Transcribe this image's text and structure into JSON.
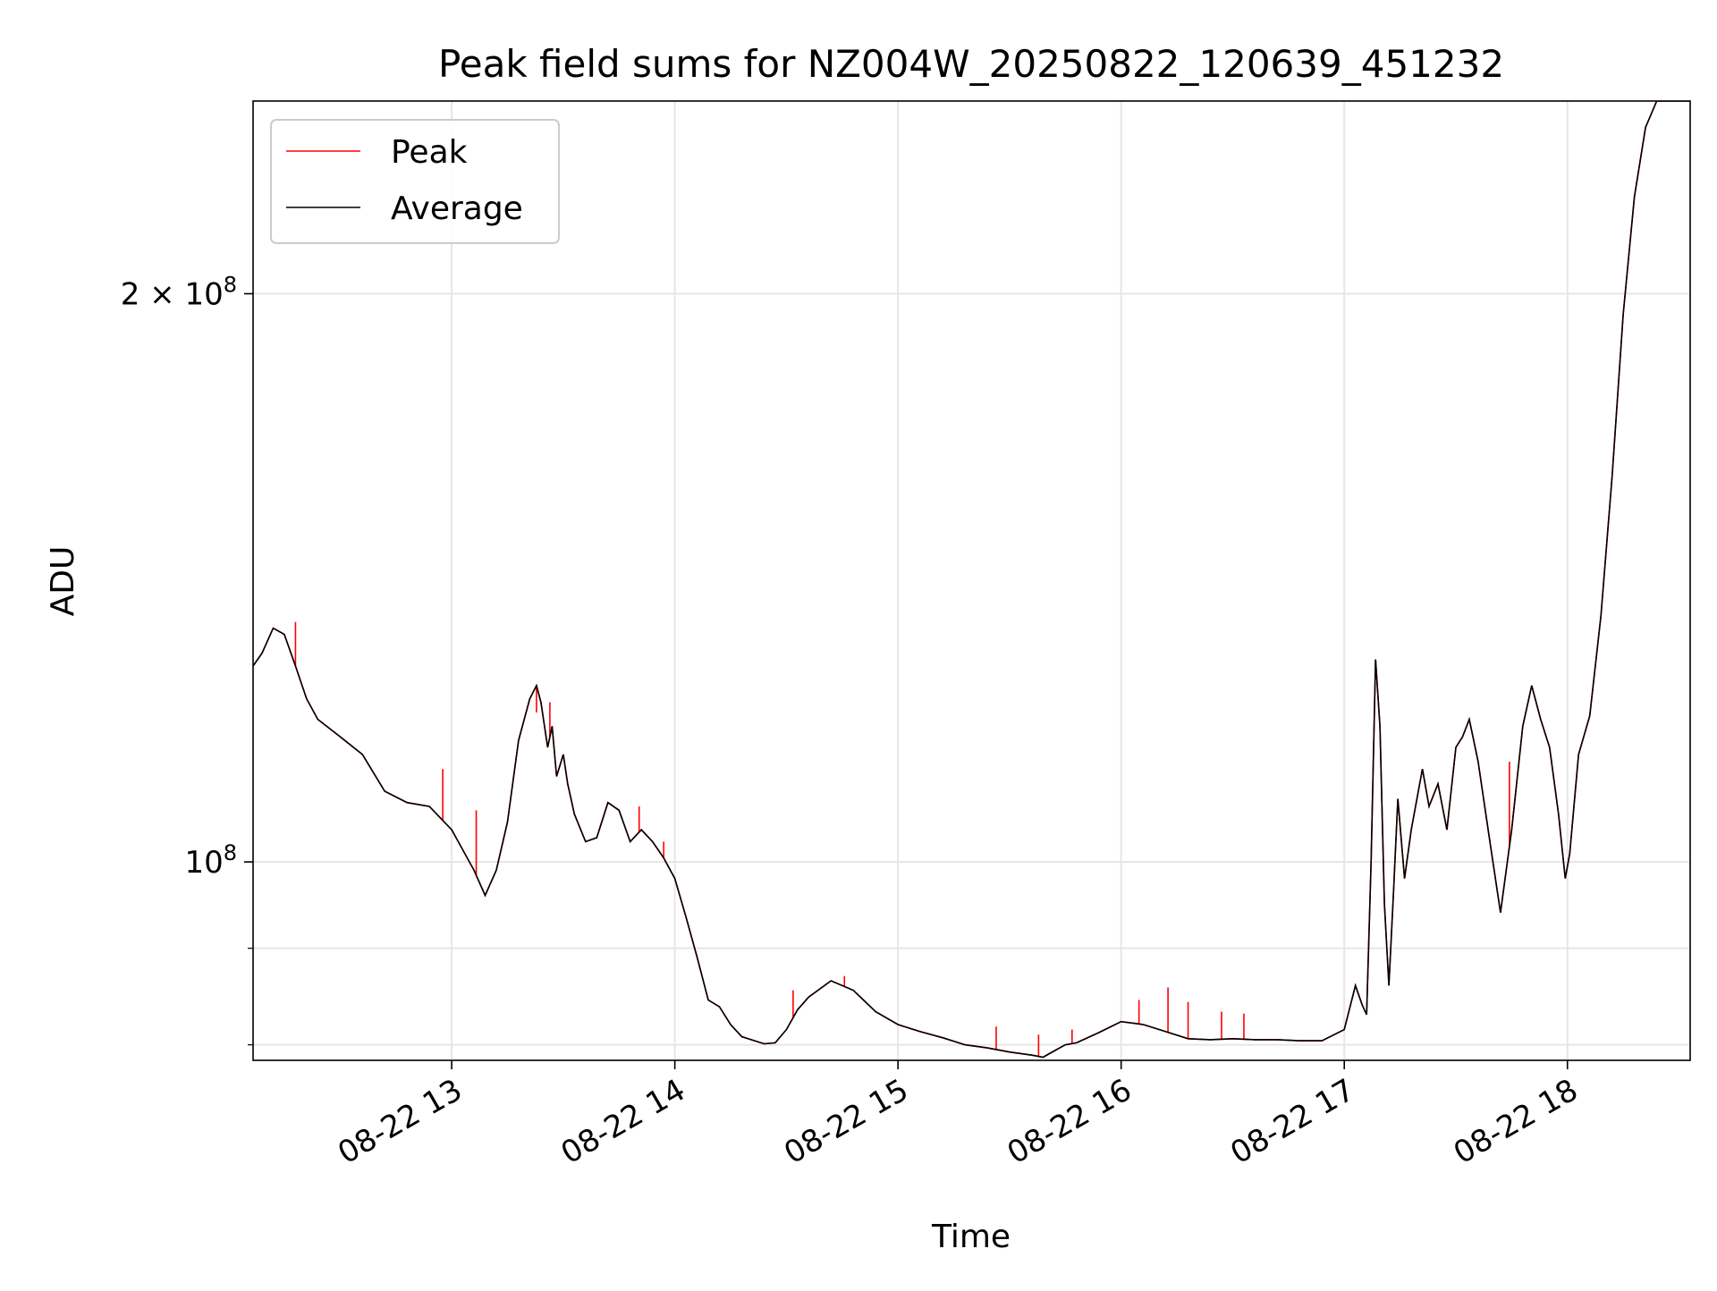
{
  "chart_data": {
    "type": "line",
    "title": "Peak field sums for NZ004W_20250822_120639_451232",
    "xlabel": "Time",
    "ylabel": "ADU",
    "x_unit": "hour of day on 2025-08-22 (decimal)",
    "xlim": [
      12.11,
      18.55
    ],
    "ylim": [
      78500000,
      253000000
    ],
    "yscale": "log",
    "grid": true,
    "legend_position": "upper left",
    "x_ticks": [
      {
        "value": 13,
        "label": "08-22 13"
      },
      {
        "value": 14,
        "label": "08-22 14"
      },
      {
        "value": 15,
        "label": "08-22 15"
      },
      {
        "value": 16,
        "label": "08-22 16"
      },
      {
        "value": 17,
        "label": "08-22 17"
      },
      {
        "value": 18,
        "label": "08-22 18"
      }
    ],
    "y_major_ticks": [
      {
        "value": 100000000,
        "base": "10",
        "exponent": "8"
      },
      {
        "value": 200000000,
        "mantissa": "2",
        "base": "10",
        "exponent": "8"
      }
    ],
    "y_minor_ticks": [
      80000000,
      90000000
    ],
    "series": [
      {
        "name": "Peak",
        "color": "#ff0000",
        "spikes": [
          [
            12.3,
            134000000
          ],
          [
            12.96,
            112000000
          ],
          [
            13.11,
            106500000
          ],
          [
            13.38,
            120000000
          ],
          [
            13.44,
            121500000
          ],
          [
            13.84,
            107000000
          ],
          [
            13.95,
            102500000
          ],
          [
            14.53,
            85500000
          ],
          [
            14.76,
            87000000
          ],
          [
            15.44,
            81800000
          ],
          [
            15.63,
            81000000
          ],
          [
            15.78,
            81500000
          ],
          [
            16.08,
            84500000
          ],
          [
            16.21,
            85800000
          ],
          [
            16.3,
            84300000
          ],
          [
            16.45,
            83300000
          ],
          [
            16.55,
            83100000
          ],
          [
            17.74,
            113000000
          ]
        ]
      },
      {
        "name": "Average",
        "color": "#000000",
        "x": [
          12.11,
          12.15,
          12.2,
          12.25,
          12.3,
          12.35,
          12.4,
          12.5,
          12.6,
          12.7,
          12.8,
          12.9,
          13.0,
          13.1,
          13.15,
          13.2,
          13.25,
          13.3,
          13.35,
          13.38,
          13.4,
          13.43,
          13.45,
          13.47,
          13.5,
          13.52,
          13.55,
          13.6,
          13.65,
          13.7,
          13.75,
          13.8,
          13.85,
          13.9,
          13.95,
          14.0,
          14.05,
          14.1,
          14.15,
          14.2,
          14.25,
          14.3,
          14.4,
          14.45,
          14.5,
          14.55,
          14.6,
          14.7,
          14.8,
          14.9,
          15.0,
          15.1,
          15.2,
          15.3,
          15.4,
          15.5,
          15.6,
          15.65,
          15.7,
          15.75,
          15.8,
          15.9,
          16.0,
          16.1,
          16.2,
          16.3,
          16.4,
          16.5,
          16.6,
          16.7,
          16.8,
          16.9,
          17.0,
          17.05,
          17.08,
          17.1,
          17.12,
          17.14,
          17.16,
          17.18,
          17.2,
          17.22,
          17.24,
          17.27,
          17.3,
          17.35,
          17.38,
          17.42,
          17.46,
          17.5,
          17.53,
          17.56,
          17.6,
          17.65,
          17.7,
          17.75,
          17.8,
          17.84,
          17.88,
          17.92,
          17.96,
          17.99,
          18.01,
          18.05,
          18.1,
          18.15,
          18.2,
          18.25,
          18.3,
          18.35,
          18.4,
          18.45,
          18.5,
          18.55
        ],
        "y": [
          127000000,
          129000000,
          133000000,
          132000000,
          127000000,
          122000000,
          119000000,
          116500000,
          114000000,
          109000000,
          107500000,
          107000000,
          104000000,
          99000000,
          96000000,
          99000000,
          105000000,
          116000000,
          122000000,
          124000000,
          121500000,
          115000000,
          118000000,
          111000000,
          114000000,
          110000000,
          106000000,
          102500000,
          103000000,
          107500000,
          106500000,
          102500000,
          104000000,
          102500000,
          100500000,
          98000000,
          93500000,
          89000000,
          84500000,
          83800000,
          82000000,
          80800000,
          80100000,
          80200000,
          81500000,
          83500000,
          84800000,
          86500000,
          85500000,
          83300000,
          82000000,
          81300000,
          80700000,
          80000000,
          79700000,
          79300000,
          79000000,
          78800000,
          79400000,
          80000000,
          80200000,
          81200000,
          82300000,
          82000000,
          81300000,
          80600000,
          80500000,
          80600000,
          80500000,
          80500000,
          80400000,
          80400000,
          81500000,
          86000000,
          84000000,
          83000000,
          100000000,
          128000000,
          118000000,
          95000000,
          86000000,
          96000000,
          108000000,
          98000000,
          104000000,
          112000000,
          107000000,
          110000000,
          104000000,
          115000000,
          116500000,
          119000000,
          113000000,
          103000000,
          94000000,
          104000000,
          118000000,
          124000000,
          119000000,
          115000000,
          106000000,
          98000000,
          101000000,
          114000000,
          119500000,
          135000000,
          160000000,
          195000000,
          225000000,
          245000000,
          253000000,
          253000000,
          253000000,
          253000000
        ]
      }
    ]
  }
}
